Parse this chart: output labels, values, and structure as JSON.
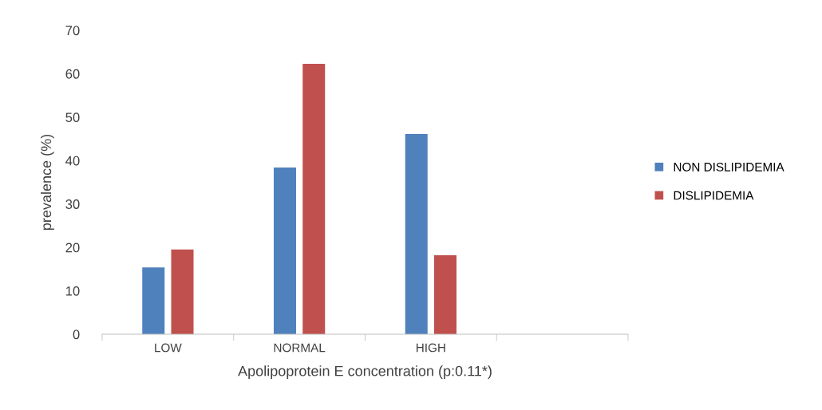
{
  "chart_data": {
    "type": "bar",
    "xlabel": "Apolipoprotein E concentration (p:0.11*)",
    "ylabel": "prevalence (%)",
    "categories": [
      "LOW",
      "NORMAL",
      "HIGH",
      null
    ],
    "series": [
      {
        "name": "NON DISLIPIDEMIA",
        "color": "#4f81bd",
        "values": [
          15.4,
          38.4,
          46.1,
          null
        ]
      },
      {
        "name": "DISLIPIDEMIA",
        "color": "#c0504d",
        "values": [
          19.5,
          62.3,
          18.2,
          null
        ]
      }
    ],
    "ylim": [
      0,
      70
    ],
    "yticks": [
      0,
      10,
      20,
      30,
      40,
      50,
      60,
      70
    ],
    "grid": false,
    "legend": "right"
  }
}
